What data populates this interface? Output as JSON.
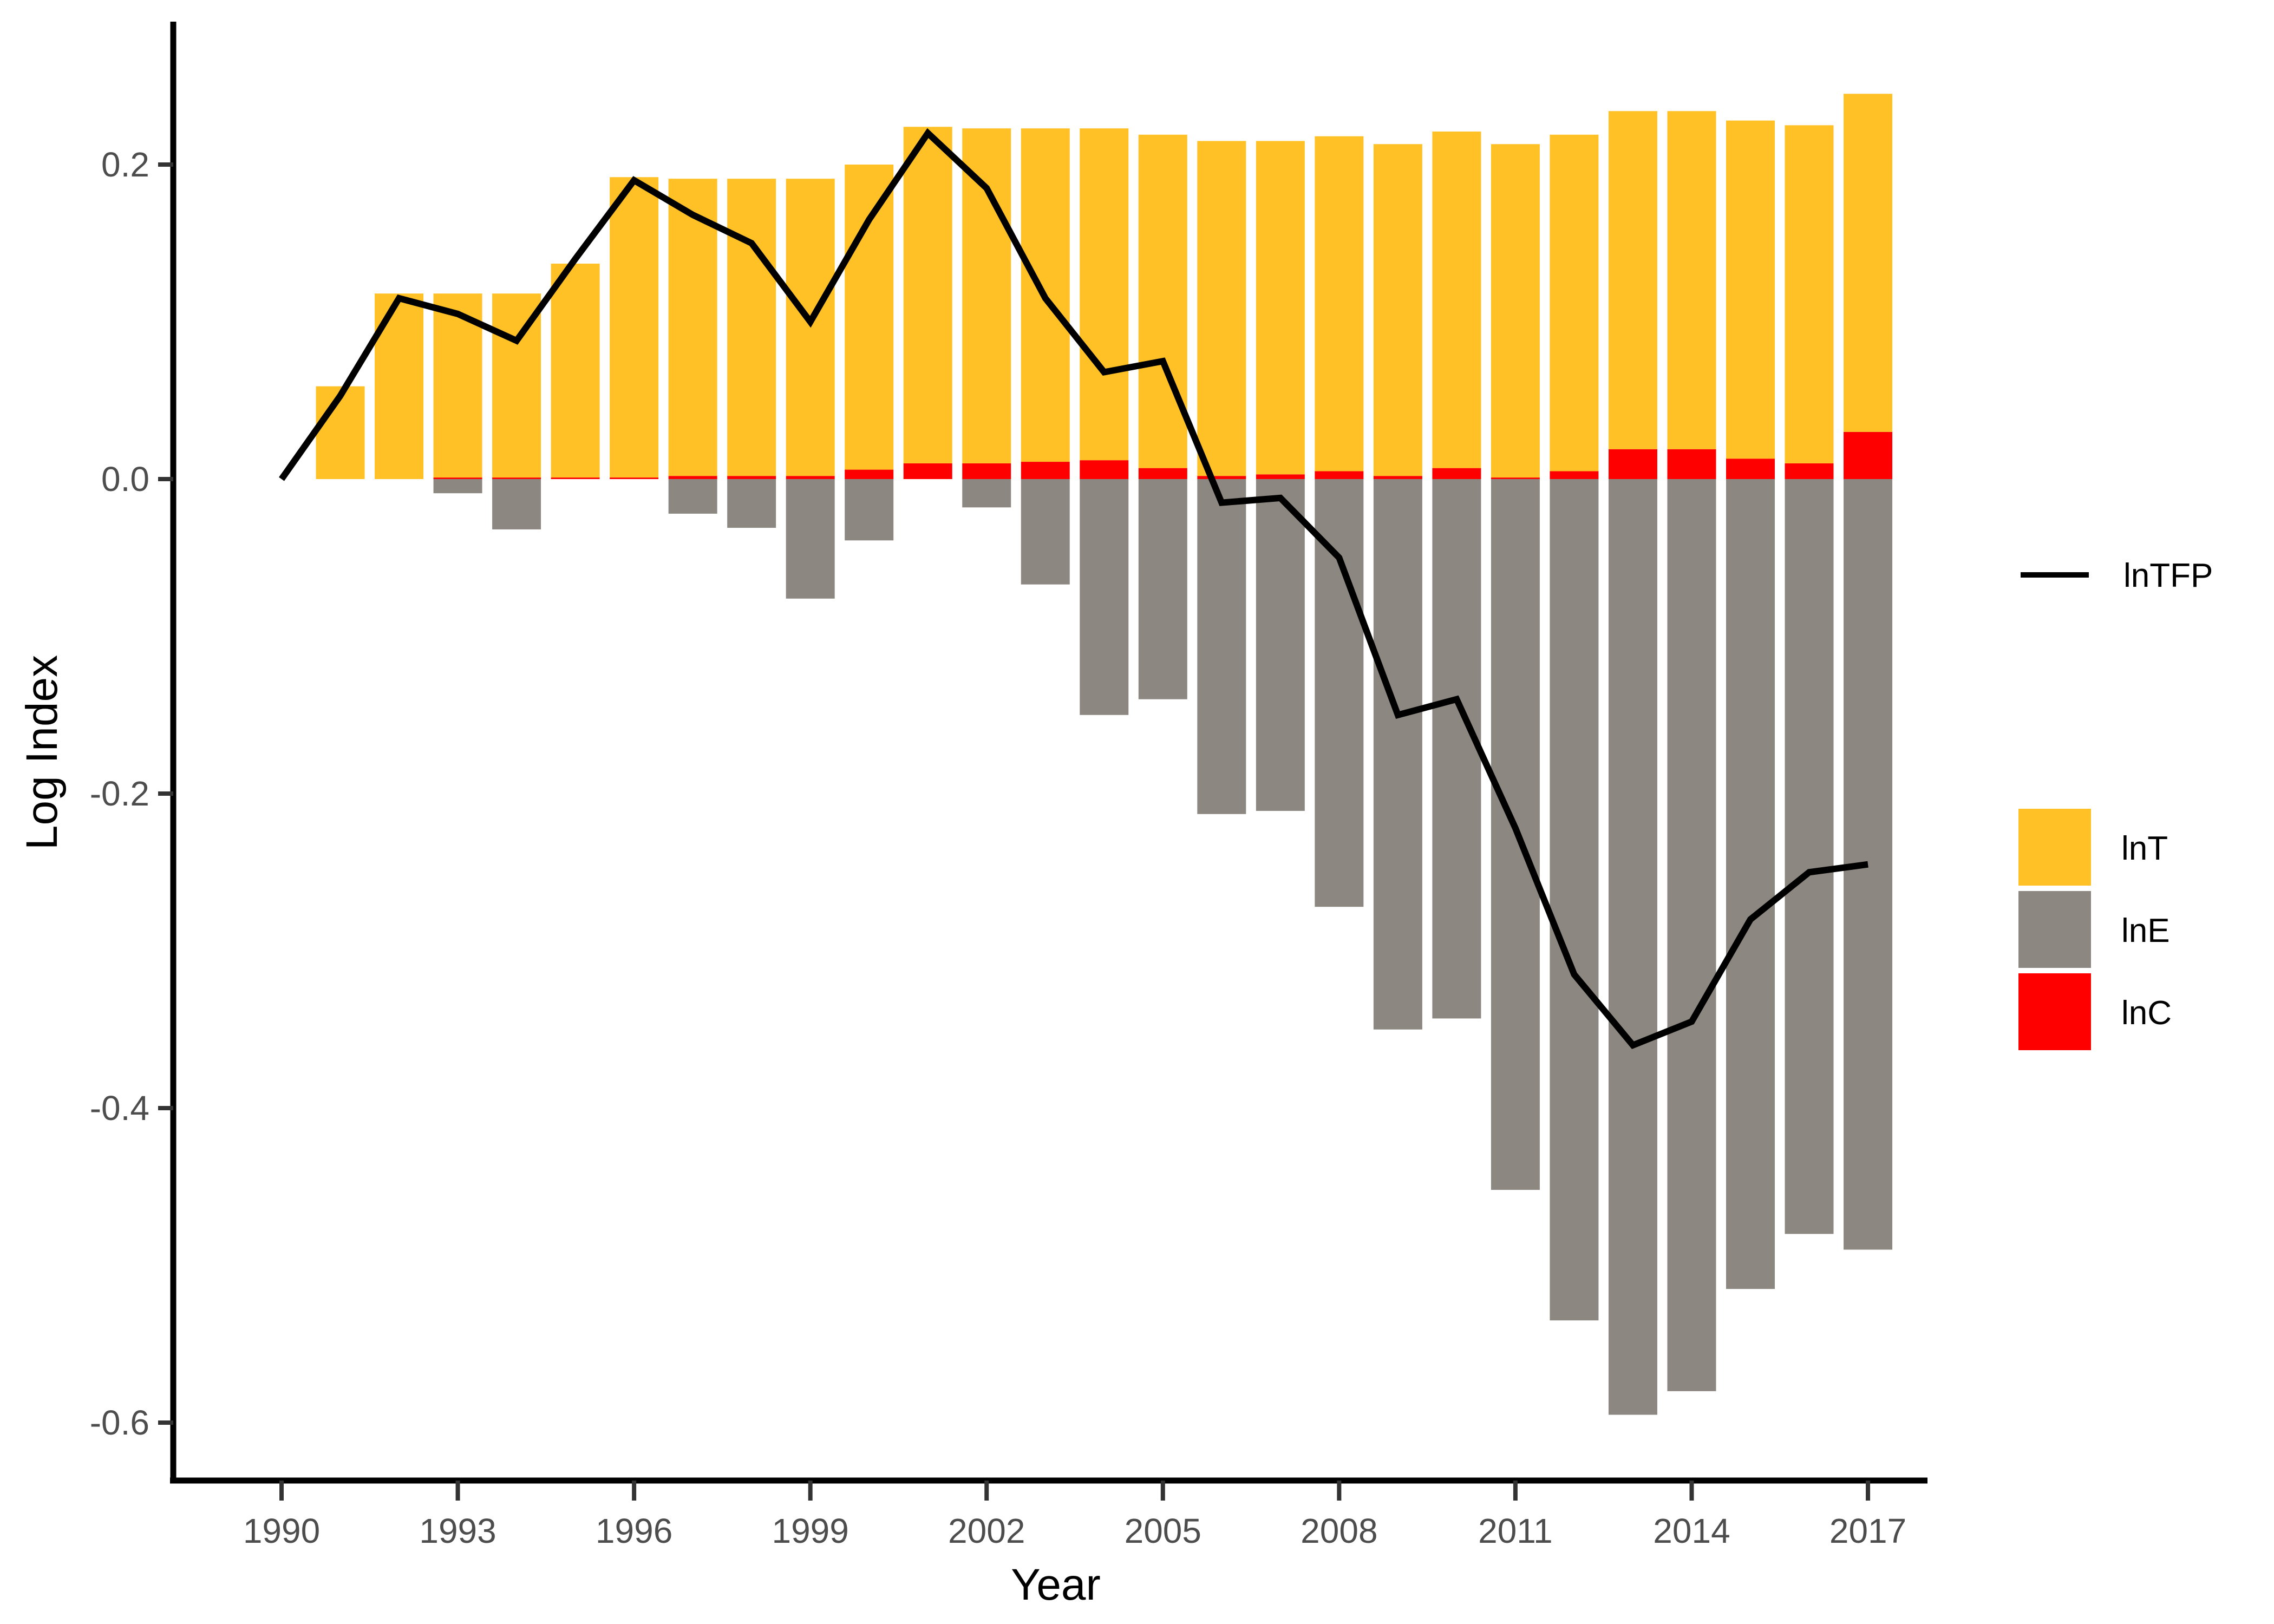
{
  "chart_data": {
    "type": "bar",
    "subtype": "stacked-bars-with-line-overlay",
    "title": "",
    "xlabel": "Year",
    "ylabel": "Log Index",
    "x": [
      1990,
      1991,
      1992,
      1993,
      1994,
      1995,
      1996,
      1997,
      1998,
      1999,
      2000,
      2001,
      2002,
      2003,
      2004,
      2005,
      2006,
      2007,
      2008,
      2009,
      2010,
      2011,
      2012,
      2013,
      2014,
      2015,
      2016,
      2017
    ],
    "series": [
      {
        "name": "lnTFP",
        "type": "line",
        "color": "#000000",
        "values": [
          0.0,
          0.053,
          0.115,
          0.105,
          0.088,
          0.14,
          0.19,
          0.168,
          0.15,
          0.1,
          0.165,
          0.22,
          0.185,
          0.115,
          0.068,
          0.075,
          -0.015,
          -0.012,
          -0.05,
          -0.15,
          -0.14,
          -0.222,
          -0.315,
          -0.36,
          -0.345,
          -0.28,
          -0.25,
          -0.245
        ]
      },
      {
        "name": "lnT",
        "type": "bar",
        "color": "#FFC125",
        "values": [
          0,
          0.059,
          0.118,
          0.117,
          0.117,
          0.136,
          0.191,
          0.189,
          0.189,
          0.189,
          0.194,
          0.214,
          0.213,
          0.212,
          0.211,
          0.212,
          0.213,
          0.212,
          0.213,
          0.211,
          0.214,
          0.212,
          0.214,
          0.215,
          0.215,
          0.215,
          0.215,
          0.215
        ]
      },
      {
        "name": "lnE",
        "type": "bar",
        "color": "#8C8781",
        "values": [
          0,
          0,
          0,
          -0.009,
          -0.032,
          0,
          0,
          -0.022,
          -0.031,
          -0.076,
          -0.039,
          0,
          -0.018,
          -0.067,
          -0.15,
          -0.14,
          -0.213,
          -0.211,
          -0.272,
          -0.35,
          -0.343,
          -0.452,
          -0.535,
          -0.595,
          -0.58,
          -0.515,
          -0.48,
          -0.49
        ]
      },
      {
        "name": "lnC",
        "type": "bar",
        "color": "#FF0000",
        "values": [
          0,
          0,
          0,
          0.001,
          0.001,
          0.001,
          0.001,
          0.002,
          0.002,
          0.002,
          0.006,
          0.01,
          0.01,
          0.011,
          0.012,
          0.007,
          0.002,
          0.003,
          0.005,
          0.002,
          0.007,
          0.001,
          0.005,
          0.019,
          0.019,
          0.013,
          0.01,
          0.03
        ]
      }
    ],
    "stack_order_positive": [
      "lnC",
      "lnT"
    ],
    "ylim": [
      -0.636,
      0.287
    ],
    "yticks": [
      0.2,
      0.0,
      -0.2,
      -0.4,
      -0.6
    ],
    "ytick_labels": [
      "0.2",
      "0.0",
      "-0.2",
      "-0.4",
      "-0.6"
    ],
    "xticks": [
      1990,
      1993,
      1996,
      1999,
      2002,
      2005,
      2008,
      2011,
      2014,
      2017
    ],
    "grid": false,
    "legend_position": "right"
  },
  "axes": {
    "xlabel": "Year",
    "ylabel": "Log Index"
  },
  "legend": {
    "line_item": {
      "label": "lnTFP",
      "color": "#000000"
    },
    "items": [
      {
        "label": "lnT",
        "color": "#FFC125"
      },
      {
        "label": "lnE",
        "color": "#8C8781"
      },
      {
        "label": "lnC",
        "color": "#FF0000"
      }
    ]
  }
}
